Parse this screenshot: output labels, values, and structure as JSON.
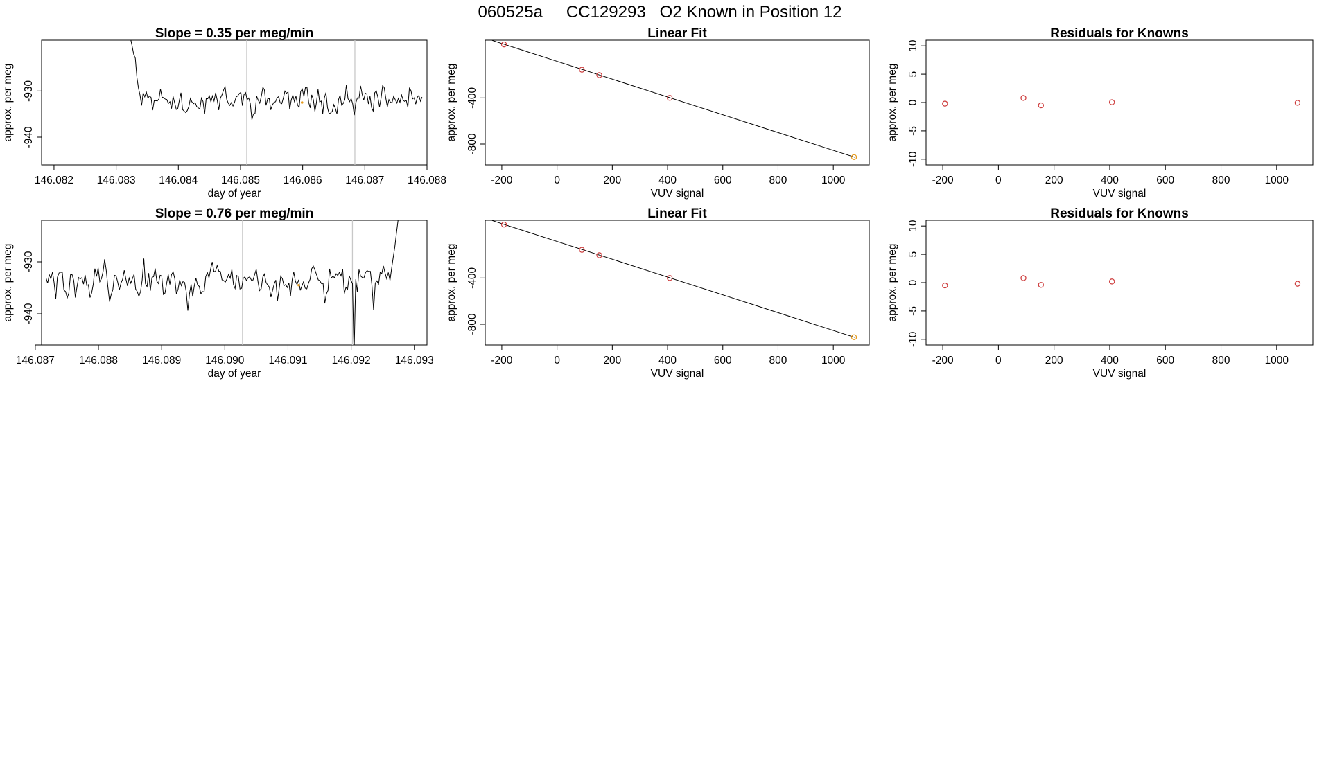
{
  "title": {
    "run": "060525a",
    "cylinder": "CC129293",
    "text": "O2 Known in Position  12"
  },
  "colors": {
    "series": "#000000",
    "vline": "#c8c8c8",
    "point": "#cd3b3b",
    "highlight": "#e69a1c"
  },
  "chart_data": [
    {
      "id": "ts1",
      "type": "line",
      "title": "Slope =  0.35  per meg/min",
      "xlabel": "day of year",
      "ylabel": "approx. per meg",
      "xlim": [
        146.0818,
        146.088
      ],
      "ylim": [
        -946,
        -919
      ],
      "xticks": [
        146.082,
        146.083,
        146.084,
        146.085,
        146.086,
        146.087,
        146.088
      ],
      "xtick_labels": [
        "146.082",
        "146.083",
        "146.084",
        "146.085",
        "146.086",
        "146.087",
        "146.088"
      ],
      "yticks": [
        -940,
        -930
      ],
      "ytick_labels": [
        "-940",
        "-930"
      ],
      "vlines": [
        146.0851,
        146.08684
      ],
      "highlight_point": [
        146.08599,
        -932.5
      ],
      "series": {
        "name": "per meg trace",
        "x_start": 146.08313,
        "x_end": 146.08792,
        "y_start": -912,
        "y_end": -933,
        "mean": -932.0,
        "amp": 3.4,
        "seed": 11,
        "n": 190,
        "initial_drop": {
          "from": -910,
          "to": -932,
          "fraction": 0.06
        }
      }
    },
    {
      "id": "fit1",
      "type": "scatter",
      "title": "Linear Fit",
      "xlabel": "VUV signal",
      "ylabel": "approx. per meg",
      "xlim": [
        -260,
        1130
      ],
      "ylim": [
        -980,
        100
      ],
      "xticks": [
        -200,
        0,
        200,
        400,
        600,
        800,
        1000
      ],
      "xtick_labels": [
        "-200",
        "0",
        "200",
        "400",
        "600",
        "800",
        "1000"
      ],
      "yticks": [
        -800,
        -400
      ],
      "ytick_labels": [
        "-800",
        "-400"
      ],
      "points": [
        {
          "x": -192,
          "y": 63
        },
        {
          "x": 90,
          "y": -156
        },
        {
          "x": 153,
          "y": -203
        },
        {
          "x": 408,
          "y": -400
        },
        {
          "x": 1075,
          "y": -913
        }
      ],
      "highlight_index": 4,
      "fit_line": {
        "x": [
          -235,
          1080
        ],
        "y": [
          98,
          -916
        ]
      }
    },
    {
      "id": "res1",
      "type": "scatter",
      "title": "Residuals for Knowns",
      "xlabel": "VUV signal",
      "ylabel": "approx. per meg",
      "xlim": [
        -260,
        1130
      ],
      "ylim": [
        -11,
        11
      ],
      "xticks": [
        -200,
        0,
        200,
        400,
        600,
        800,
        1000
      ],
      "xtick_labels": [
        "-200",
        "0",
        "200",
        "400",
        "600",
        "800",
        "1000"
      ],
      "yticks": [
        -10,
        -5,
        0,
        5,
        10
      ],
      "ytick_labels": [
        "-10",
        "-5",
        "0",
        "5",
        "10"
      ],
      "points": [
        {
          "x": -192,
          "y": -0.2
        },
        {
          "x": 90,
          "y": 0.8
        },
        {
          "x": 153,
          "y": -0.5
        },
        {
          "x": 408,
          "y": 0.05
        },
        {
          "x": 1075,
          "y": -0.05
        }
      ]
    },
    {
      "id": "ts2",
      "type": "line",
      "title": "Slope =  0.76  per meg/min",
      "xlabel": "day of year",
      "ylabel": "approx. per meg",
      "xlim": [
        146.0871,
        146.0932
      ],
      "ylim": [
        -946,
        -922
      ],
      "xticks": [
        146.087,
        146.088,
        146.089,
        146.09,
        146.091,
        146.092,
        146.093
      ],
      "xtick_labels": [
        "146.087",
        "146.088",
        "146.089",
        "146.090",
        "146.091",
        "146.092",
        "146.093"
      ],
      "yticks": [
        -940,
        -930
      ],
      "ytick_labels": [
        "-940",
        "-930"
      ],
      "vlines": [
        146.09028,
        146.09202
      ],
      "highlight_point": [
        146.09117,
        -934.5
      ],
      "series": {
        "name": "per meg trace",
        "x_start": 146.08717,
        "x_end": 146.09282,
        "y_start": -936,
        "y_end": -915,
        "mean": -934.0,
        "amp": 3.6,
        "seed": 29,
        "n": 220,
        "final_rise": {
          "to": -915,
          "fraction": 0.04
        },
        "dip": {
          "x": 146.09205,
          "y": -948
        }
      }
    },
    {
      "id": "fit2",
      "type": "scatter",
      "title": "Linear Fit",
      "xlabel": "VUV signal",
      "ylabel": "approx. per meg",
      "xlim": [
        -260,
        1130
      ],
      "ylim": [
        -980,
        100
      ],
      "xticks": [
        -200,
        0,
        200,
        400,
        600,
        800,
        1000
      ],
      "xtick_labels": [
        "-200",
        "0",
        "200",
        "400",
        "600",
        "800",
        "1000"
      ],
      "yticks": [
        -800,
        -400
      ],
      "ytick_labels": [
        "-800",
        "-400"
      ],
      "points": [
        {
          "x": -192,
          "y": 63
        },
        {
          "x": 90,
          "y": -156
        },
        {
          "x": 153,
          "y": -203
        },
        {
          "x": 408,
          "y": -400
        },
        {
          "x": 1075,
          "y": -913
        }
      ],
      "highlight_index": 4,
      "fit_line": {
        "x": [
          -235,
          1080
        ],
        "y": [
          98,
          -916
        ]
      }
    },
    {
      "id": "res2",
      "type": "scatter",
      "title": "Residuals for Knowns",
      "xlabel": "VUV signal",
      "ylabel": "approx. per meg",
      "xlim": [
        -260,
        1130
      ],
      "ylim": [
        -11,
        11
      ],
      "xticks": [
        -200,
        0,
        200,
        400,
        600,
        800,
        1000
      ],
      "xtick_labels": [
        "-200",
        "0",
        "200",
        "400",
        "600",
        "800",
        "1000"
      ],
      "yticks": [
        -10,
        -5,
        0,
        5,
        10
      ],
      "ytick_labels": [
        "-10",
        "-5",
        "0",
        "5",
        "10"
      ],
      "points": [
        {
          "x": -192,
          "y": -0.5
        },
        {
          "x": 90,
          "y": 0.8
        },
        {
          "x": 153,
          "y": -0.4
        },
        {
          "x": 408,
          "y": 0.2
        },
        {
          "x": 1075,
          "y": -0.2
        }
      ]
    }
  ]
}
